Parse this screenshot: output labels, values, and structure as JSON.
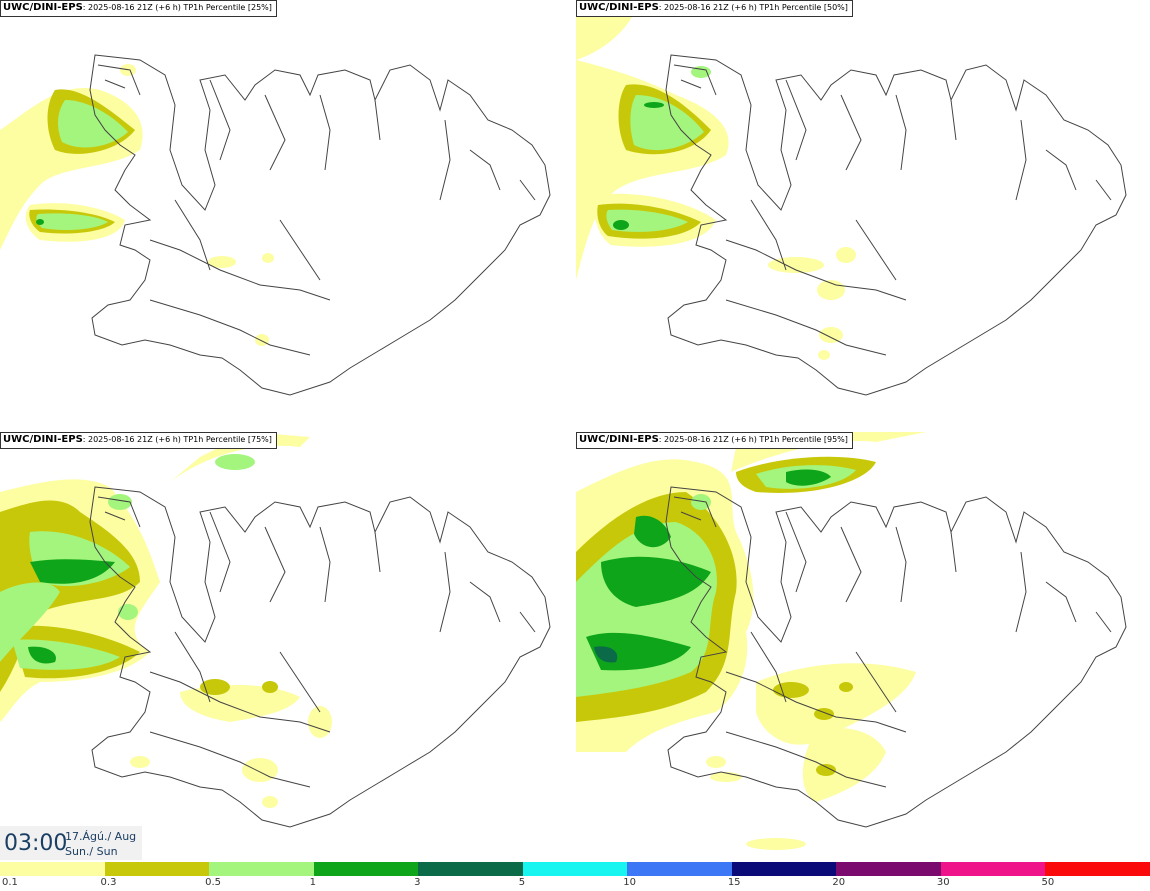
{
  "panels": [
    {
      "model": "UWC/DINI-EPS",
      "info": ": 2025-08-16 21Z (+6 h) TP1h Percentile [25%]"
    },
    {
      "model": "UWC/DINI-EPS",
      "info": ": 2025-08-16 21Z (+6 h) TP1h Percentile [50%]"
    },
    {
      "model": "UWC/DINI-EPS",
      "info": ": 2025-08-16 21Z (+6 h) TP1h Percentile [75%]"
    },
    {
      "model": "UWC/DINI-EPS",
      "info": ": 2025-08-16 21Z (+6 h) TP1h Percentile [95%]"
    }
  ],
  "valid_time": {
    "time": "03:00",
    "date_line1": "17.Ágú./ Aug",
    "date_line2": "Sun./ Sun"
  },
  "legend": {
    "ticks": [
      "0.1",
      "0.3",
      "0.5",
      "1",
      "3",
      "5",
      "10",
      "15",
      "20",
      "30",
      "50"
    ],
    "colors": [
      "#fdfda2",
      "#c8c80a",
      "#a4f57d",
      "#0ea51a",
      "#0b6b48",
      "#18f5f0",
      "#3c78f5",
      "#0a0a78",
      "#7a0a6e",
      "#f0148a",
      "#fa0a0a"
    ]
  },
  "map_colors": {
    "land": "#ffffff",
    "coast": "#444444",
    "level_0_1": "#fdfda2",
    "level_0_3": "#c8c80a",
    "level_0_5": "#a4f57d",
    "level_1": "#0ea51a",
    "level_3": "#0b6b48"
  }
}
